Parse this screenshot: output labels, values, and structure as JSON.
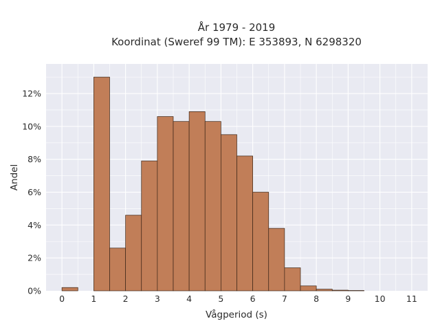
{
  "chart_data": {
    "type": "bar",
    "title": "År 1979 - 2019",
    "subtitle": "Koordinat (Sweref 99 TM): E 353893, N 6298320",
    "xlabel": "Vågperiod (s)",
    "ylabel": "Andel",
    "bin_width": 0.5,
    "bin_starts": [
      0,
      0.5,
      1,
      1.5,
      2,
      2.5,
      3,
      3.5,
      4,
      4.5,
      5,
      5.5,
      6,
      6.5,
      7,
      7.5,
      8,
      8.5,
      9,
      9.5,
      10,
      10.5
    ],
    "values": [
      0.2,
      0,
      13.0,
      2.6,
      4.6,
      7.9,
      10.6,
      10.3,
      10.9,
      10.3,
      9.5,
      8.2,
      6.0,
      3.8,
      1.4,
      0.3,
      0.1,
      0.04,
      0.02,
      0,
      0,
      0
    ],
    "xlim": [
      -0.5,
      11.5
    ],
    "ylim": [
      0,
      13.8
    ],
    "x_ticks": [
      0,
      1,
      2,
      3,
      4,
      5,
      6,
      7,
      8,
      9,
      10,
      11
    ],
    "x_tick_labels": [
      "0",
      "1",
      "2",
      "3",
      "4",
      "5",
      "6",
      "7",
      "8",
      "9",
      "10",
      "11"
    ],
    "y_ticks": [
      0,
      2,
      4,
      6,
      8,
      10,
      12
    ],
    "y_tick_labels": [
      "0%",
      "2%",
      "4%",
      "6%",
      "8%",
      "10%",
      "12%"
    ],
    "grid": true,
    "colors": {
      "bar_fill": "#c17e58",
      "bar_edge": "#3a2518",
      "plot_bg": "#e9eaf2",
      "grid": "#ffffff"
    }
  }
}
